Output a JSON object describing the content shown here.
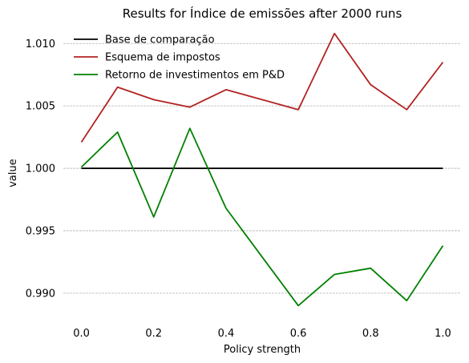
{
  "chart_data": {
    "type": "line",
    "title": "Results for Índice de emissões after 2000 runs",
    "xlabel": "Policy strength",
    "ylabel": "value",
    "x": [
      0.0,
      0.1,
      0.2,
      0.3,
      0.4,
      0.5,
      0.6,
      0.7,
      0.8,
      0.9,
      1.0
    ],
    "xlim": [
      -0.05,
      1.05
    ],
    "ylim": [
      0.988,
      1.0113
    ],
    "xticks": [
      0.0,
      0.2,
      0.4,
      0.6,
      0.8,
      1.0
    ],
    "xtick_labels": [
      "0.0",
      "0.2",
      "0.4",
      "0.6",
      "0.8",
      "1.0"
    ],
    "yticks": [
      0.99,
      0.995,
      1.0,
      1.005,
      1.01
    ],
    "ytick_labels": [
      "0.990",
      "0.995",
      "1.000",
      "1.005",
      "1.010"
    ],
    "grid": "y-dashed",
    "legend_position": "top-left",
    "series": [
      {
        "name": "Base de comparação",
        "color": "#000000",
        "values": [
          1.0,
          1.0,
          1.0,
          1.0,
          1.0,
          1.0,
          1.0,
          1.0,
          1.0,
          1.0,
          1.0
        ]
      },
      {
        "name": "Esquema de impostos",
        "color": "#b22222",
        "values": [
          1.0021,
          1.0065,
          1.0055,
          1.0049,
          1.0063,
          1.0055,
          1.0047,
          1.0108,
          1.0067,
          1.0047,
          1.0085
        ]
      },
      {
        "name": "Retorno de investimentos em P&D",
        "color": "#008000",
        "values": [
          1.0001,
          1.0029,
          0.9961,
          1.0032,
          0.9968,
          0.9929,
          0.989,
          0.9915,
          0.992,
          0.9894,
          0.9938
        ]
      }
    ]
  }
}
